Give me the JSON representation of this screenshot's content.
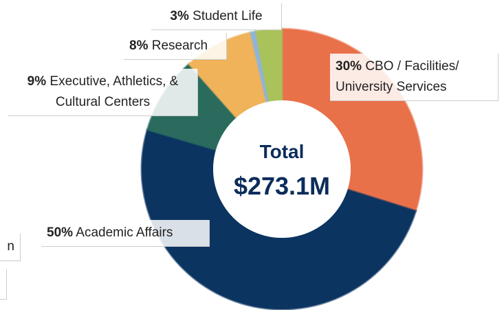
{
  "chart_data": {
    "type": "donut",
    "categories": [
      "CBO / Facilities/ University Services",
      "Academic Affairs",
      "Executive, Athletics, & Cultural Centers",
      "Research",
      null,
      "Student Life"
    ],
    "values": [
      30,
      50,
      9,
      8,
      0.6,
      3
    ],
    "value_labels": [
      "30%",
      "50%",
      "9%",
      "8%",
      null,
      "3%"
    ],
    "colors": [
      "#e8714a",
      "#0b3461",
      "#2a6b5e",
      "#f0b35a",
      "#8eb4d9",
      "#a9c25a"
    ],
    "center_label": "Total",
    "center_value": "$273.1M",
    "annotations": [
      "n"
    ]
  }
}
